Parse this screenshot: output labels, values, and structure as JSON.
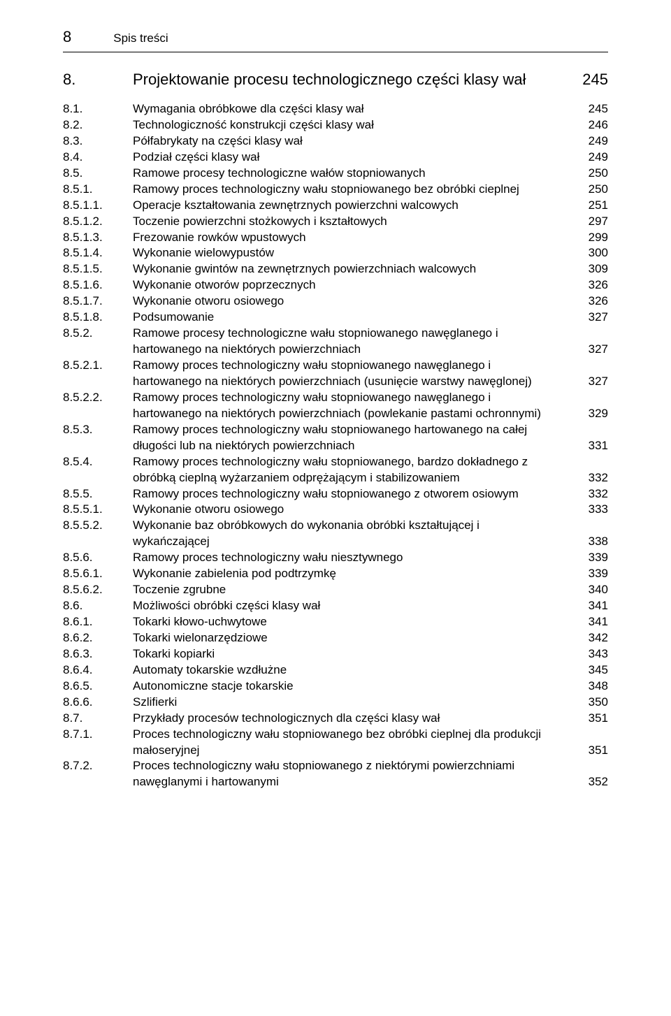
{
  "header": {
    "page_number": "8",
    "running_title": "Spis treści"
  },
  "chapter": {
    "num": "8.",
    "title": "Projektowanie procesu technologicznego części klasy wał",
    "page": "245"
  },
  "entries": [
    {
      "num": "8.1.",
      "title": "Wymagania obróbkowe dla części klasy wał",
      "page": "245"
    },
    {
      "num": "8.2.",
      "title": "Technologiczność konstrukcji części klasy wał",
      "page": "246"
    },
    {
      "num": "8.3.",
      "title": "Półfabrykaty na części klasy wał",
      "page": "249"
    },
    {
      "num": "8.4.",
      "title": "Podział części klasy wał",
      "page": "249"
    },
    {
      "num": "8.5.",
      "title": "Ramowe procesy technologiczne wałów stopniowanych",
      "page": "250"
    },
    {
      "num": "8.5.1.",
      "title": "Ramowy proces technologiczny wału stopniowanego bez obróbki cieplnej",
      "page": "250"
    },
    {
      "num": "8.5.1.1.",
      "title": "Operacje kształtowania zewnętrznych powierzchni walcowych",
      "page": "251"
    },
    {
      "num": "8.5.1.2.",
      "title": "Toczenie powierzchni stożkowych i kształtowych",
      "page": "297"
    },
    {
      "num": "8.5.1.3.",
      "title": "Frezowanie rowków wpustowych",
      "page": "299"
    },
    {
      "num": "8.5.1.4.",
      "title": "Wykonanie wielowypustów",
      "page": "300"
    },
    {
      "num": "8.5.1.5.",
      "title": "Wykonanie gwintów na zewnętrznych powierzchniach walcowych",
      "page": "309"
    },
    {
      "num": "8.5.1.6.",
      "title": "Wykonanie otworów poprzecznych",
      "page": "326"
    },
    {
      "num": "8.5.1.7.",
      "title": "Wykonanie otworu osiowego",
      "page": "326"
    },
    {
      "num": "8.5.1.8.",
      "title": "Podsumowanie",
      "page": "327"
    },
    {
      "num": "8.5.2.",
      "title": "Ramowe procesy technologiczne wału stopniowanego nawęglanego i hartowanego na niektórych powierzchniach",
      "page": "327"
    },
    {
      "num": "8.5.2.1.",
      "title": "Ramowy proces technologiczny wału stopniowanego nawęglanego i hartowanego na niektórych powierzchniach (usunięcie warstwy nawęglonej)",
      "page": "327"
    },
    {
      "num": "8.5.2.2.",
      "title": "Ramowy proces technologiczny wału stopniowanego nawęglanego i hartowanego na niektórych powierzchniach (powlekanie pastami ochronnymi)",
      "page": "329"
    },
    {
      "num": "8.5.3.",
      "title": "Ramowy proces technologiczny wału stopniowanego hartowanego na całej długości lub na niektórych powierzchniach",
      "page": "331"
    },
    {
      "num": "8.5.4.",
      "title": "Ramowy proces technologiczny wału stopniowanego, bardzo dokładnego z obróbką cieplną wyżarzaniem odprężającym i stabilizowaniem",
      "page": "332"
    },
    {
      "num": "8.5.5.",
      "title": "Ramowy proces technologiczny wału stopniowanego z otworem osiowym",
      "page": "332"
    },
    {
      "num": "8.5.5.1.",
      "title": "Wykonanie otworu osiowego",
      "page": "333"
    },
    {
      "num": "8.5.5.2.",
      "title": "Wykonanie baz obróbkowych do wykonania obróbki kształtującej i wykańczającej",
      "page": "338"
    },
    {
      "num": "8.5.6.",
      "title": "Ramowy proces technologiczny wału niesztywnego",
      "page": "339"
    },
    {
      "num": "8.5.6.1.",
      "title": "Wykonanie zabielenia pod podtrzymkę",
      "page": "339"
    },
    {
      "num": "8.5.6.2.",
      "title": "Toczenie zgrubne",
      "page": "340"
    },
    {
      "num": "8.6.",
      "title": "Możliwości obróbki części klasy wał",
      "page": "341"
    },
    {
      "num": "8.6.1.",
      "title": "Tokarki kłowo-uchwytowe",
      "page": "341"
    },
    {
      "num": "8.6.2.",
      "title": "Tokarki wielonarzędziowe",
      "page": "342"
    },
    {
      "num": "8.6.3.",
      "title": "Tokarki kopiarki",
      "page": "343"
    },
    {
      "num": "8.6.4.",
      "title": "Automaty tokarskie wzdłużne",
      "page": "345"
    },
    {
      "num": "8.6.5.",
      "title": "Autonomiczne stacje tokarskie",
      "page": "348"
    },
    {
      "num": "8.6.6.",
      "title": "Szlifierki",
      "page": "350"
    },
    {
      "num": "8.7.",
      "title": "Przykłady procesów technologicznych dla części klasy wał",
      "page": "351"
    },
    {
      "num": "8.7.1.",
      "title": "Proces technologiczny wału stopniowanego bez obróbki cieplnej dla produkcji małoseryjnej",
      "page": "351"
    },
    {
      "num": "8.7.2.",
      "title": "Proces technologiczny wału stopniowanego z niektórymi powierzchniami nawęglanymi i hartowanymi",
      "page": "352"
    }
  ]
}
